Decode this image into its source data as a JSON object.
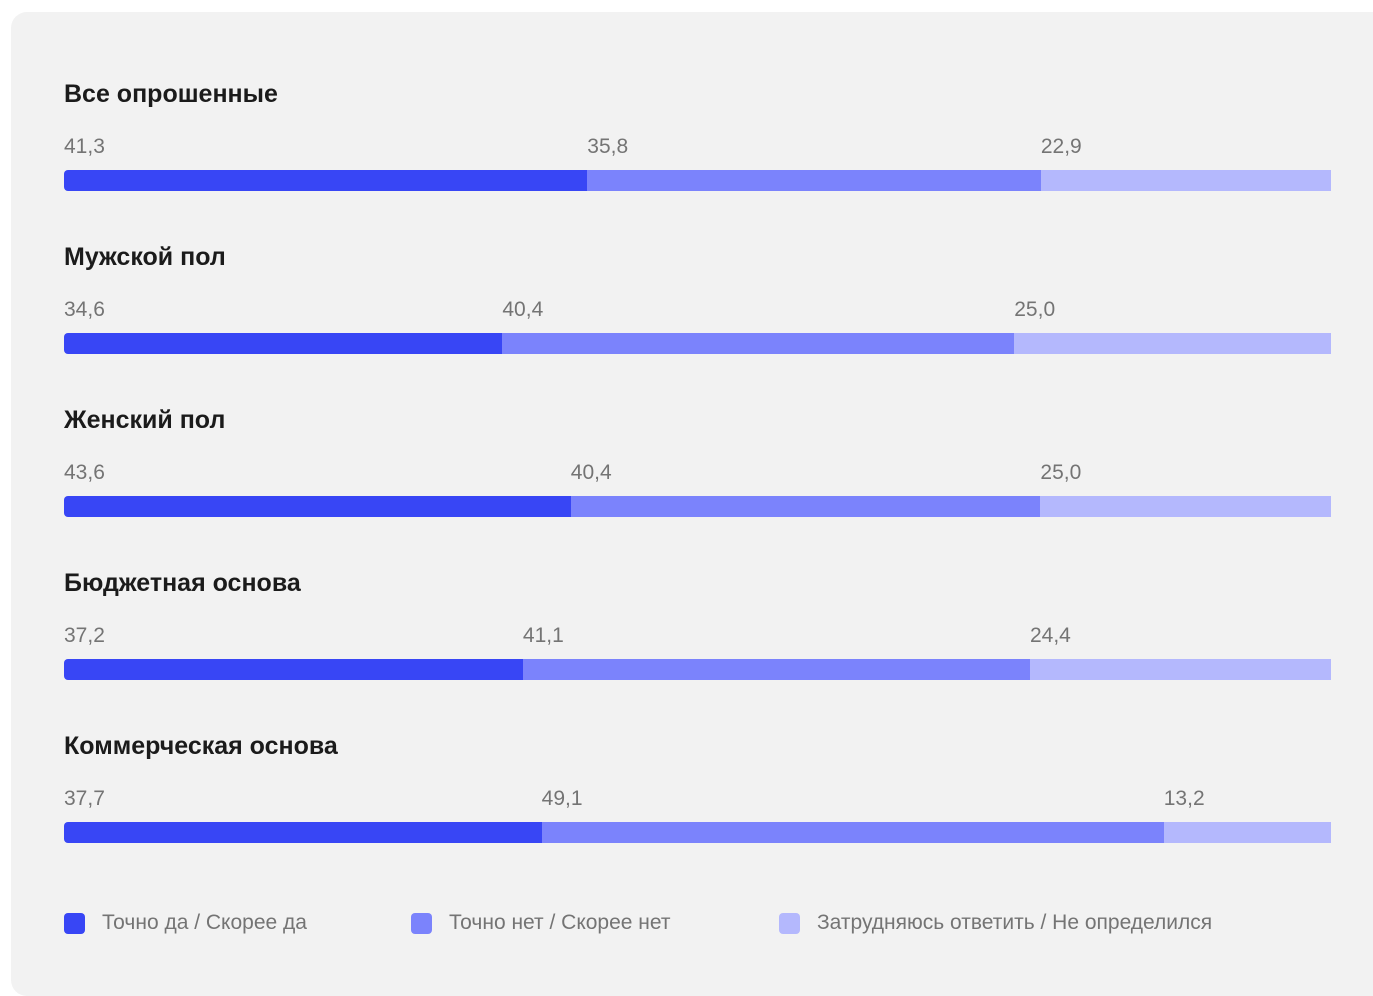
{
  "colors": {
    "yes": "#3846f5",
    "no": "#7b83fc",
    "undecided": "#b4b8fd"
  },
  "legend": [
    {
      "label": "Точно да / Скорее да",
      "color": "#3846f5"
    },
    {
      "label": "Точно нет / Скорее нет",
      "color": "#7b83fc"
    },
    {
      "label": "Затрудняюсь ответить / Не определился",
      "color": "#b4b8fd"
    }
  ],
  "chart_data": {
    "type": "bar",
    "orientation": "horizontal",
    "stacked": true,
    "normalized": true,
    "legend_position": "bottom",
    "categories": [
      "Все опрошенные",
      "Мужской пол",
      "Женский пол",
      "Бюджетная основа",
      "Коммерческая основа"
    ],
    "series": [
      {
        "name": "Точно да / Скорее да",
        "values": [
          41.3,
          34.6,
          43.6,
          37.2,
          37.7
        ],
        "labels": [
          "41,3",
          "34,6",
          "43,6",
          "37,2",
          "37,7"
        ]
      },
      {
        "name": "Точно нет / Скорее нет",
        "values": [
          35.8,
          40.4,
          40.4,
          41.1,
          49.1
        ],
        "labels": [
          "35,8",
          "40,4",
          "40,4",
          "41,1",
          "49,1"
        ]
      },
      {
        "name": "Затрудняюсь ответить / Не определился",
        "values": [
          22.9,
          25.0,
          25.0,
          24.4,
          13.2
        ],
        "labels": [
          "22,9",
          "25,0",
          "25,0",
          "24,4",
          "13,2"
        ]
      }
    ]
  }
}
